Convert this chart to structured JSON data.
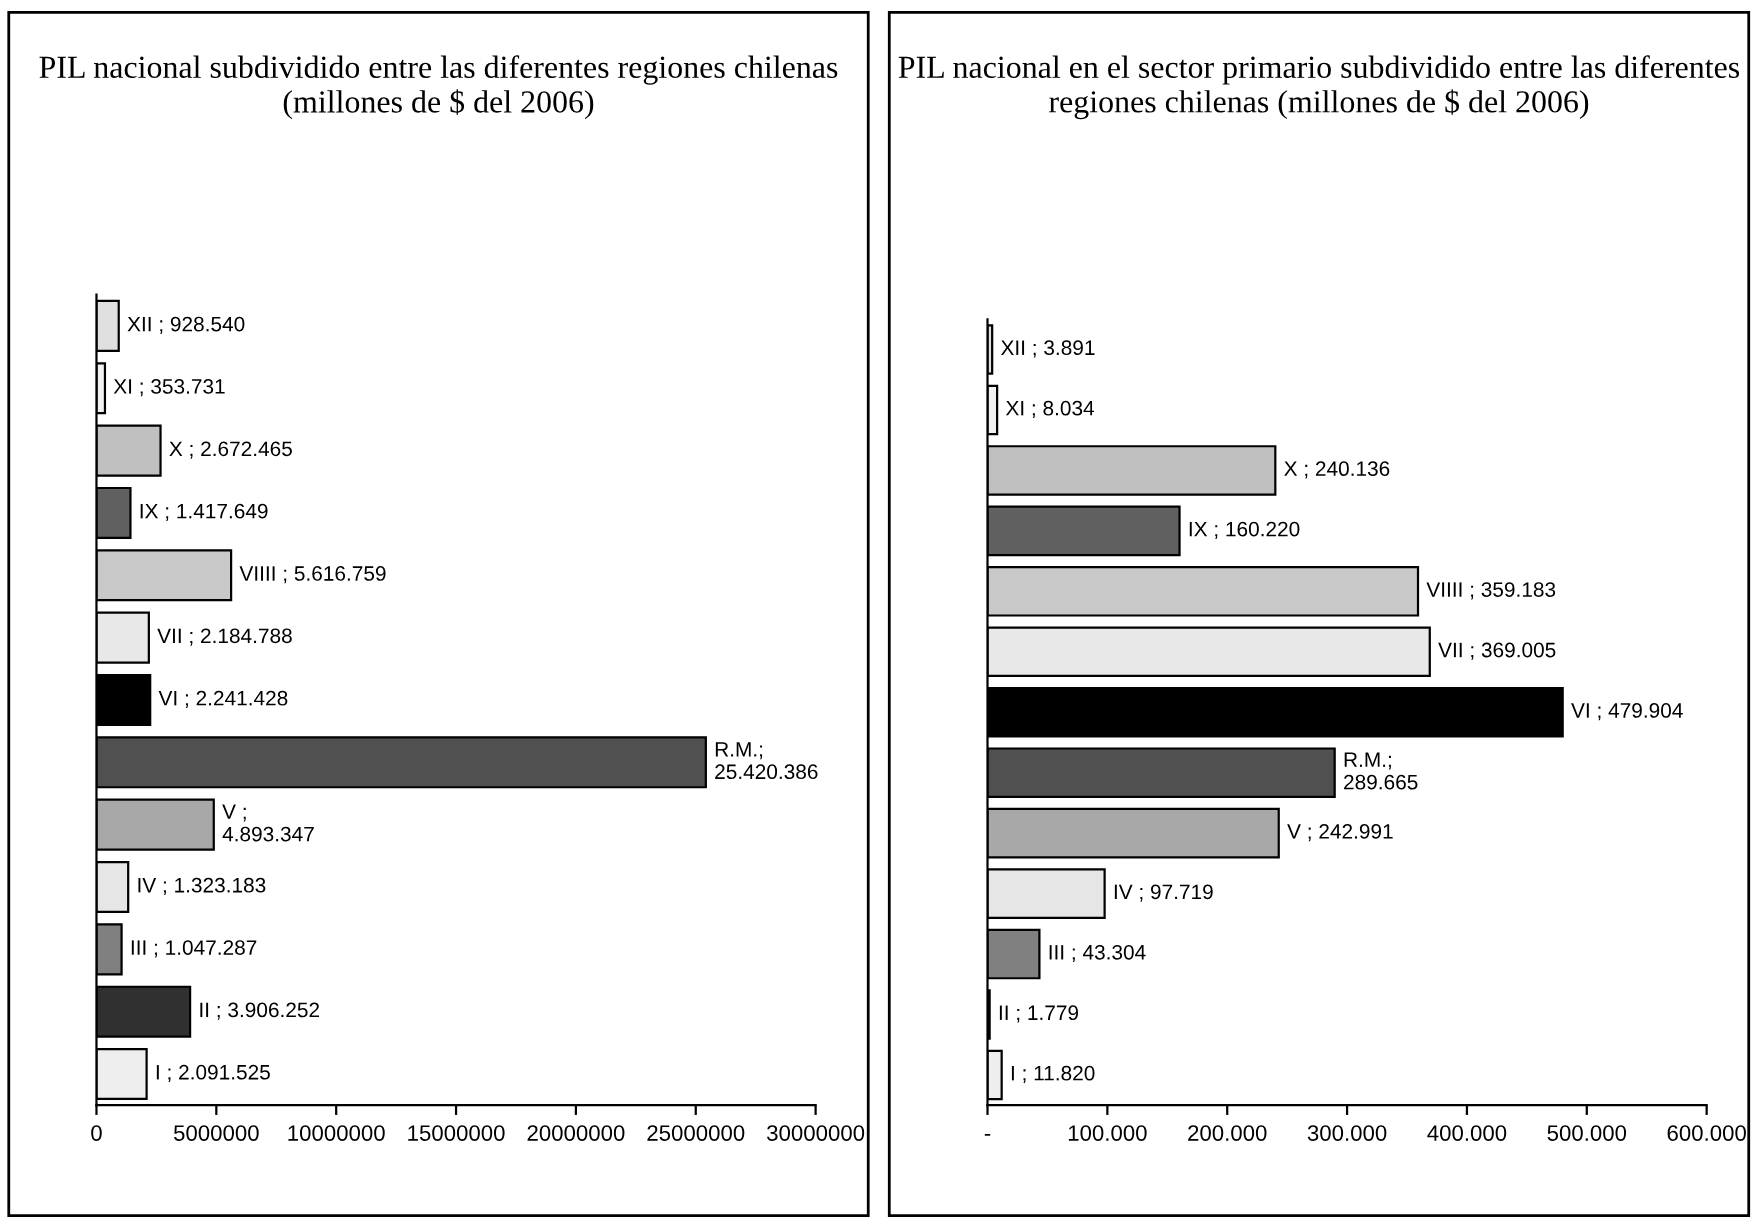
{
  "chart_data": [
    {
      "type": "bar",
      "orientation": "horizontal",
      "title": "PIL nacional subdividido entre las diferentes regiones chilenas (millones de $ del 2006)",
      "categories": [
        null,
        null,
        null,
        null,
        null,
        null,
        null,
        null,
        null,
        null,
        null,
        null,
        null
      ],
      "values": [
        928540,
        353731,
        2672465,
        1417649,
        5616759,
        2184788,
        2241428,
        25420386,
        4893347,
        1323183,
        1047287,
        3906252,
        2091525
      ],
      "value_labels": [
        "XII ; 928.540",
        "XI ; 353.731",
        "X ; 2.672.465",
        "IX ; 1.417.649",
        "VIIII ; 5.616.759",
        "VII ; 2.184.788",
        "VI ; 2.241.428",
        "R.M.;\n25.420.386",
        "V ;\n4.893.347",
        "IV ; 1.323.183",
        "III ; 1.047.287",
        "II ; 3.906.252",
        "I ; 2.091.525"
      ],
      "colors": [
        "#e0e0e0",
        "#f2f2f2",
        "#c0c0c0",
        "#606060",
        "#c8c8c8",
        "#e8e8e8",
        "#000000",
        "#505050",
        "#a8a8a8",
        "#e6e6e6",
        "#808080",
        "#303030",
        "#eeeeee"
      ],
      "xlim": [
        0,
        30000000
      ],
      "xticks": [
        0,
        5000000,
        10000000,
        15000000,
        20000000,
        25000000,
        30000000
      ],
      "grid": false,
      "legend": false
    },
    {
      "type": "bar",
      "orientation": "horizontal",
      "title": "PIL nacional en el sector primario subdividido entre las diferentes regiones chilenas (millones de $ del 2006)",
      "categories": [
        null,
        null,
        null,
        null,
        null,
        null,
        null,
        null,
        null,
        null,
        null,
        null,
        null
      ],
      "values": [
        3891,
        8034,
        240136,
        160220,
        359183,
        369005,
        479904,
        289665,
        242991,
        97719,
        43304,
        1779,
        11820
      ],
      "value_labels": [
        "XII ; 3.891",
        "XI ; 8.034",
        "X ; 240.136",
        "IX ; 160.220",
        "VIIII ; 359.183",
        "VII ; 369.005",
        "VI ; 479.904",
        "R.M.;\n289.665",
        "V ; 242.991",
        "IV ; 97.719",
        "III ; 43.304",
        "II ; 1.779",
        "I ; 11.820"
      ],
      "colors": [
        "#e0e0e0",
        "#f2f2f2",
        "#c0c0c0",
        "#606060",
        "#c8c8c8",
        "#e8e8e8",
        "#000000",
        "#505050",
        "#a8a8a8",
        "#e6e6e6",
        "#808080",
        "#303030",
        "#eeeeee"
      ],
      "xlim": [
        0,
        600000
      ],
      "xticks": [
        {
          "value": 0,
          "label": "-"
        },
        {
          "value": 100000,
          "label": "100.000"
        },
        {
          "value": 200000,
          "label": "200.000"
        },
        {
          "value": 300000,
          "label": "300.000"
        },
        {
          "value": 400000,
          "label": "400.000"
        },
        {
          "value": 500000,
          "label": "500.000"
        },
        {
          "value": 600000,
          "label": "600.000"
        }
      ],
      "grid": false,
      "legend": false
    }
  ]
}
